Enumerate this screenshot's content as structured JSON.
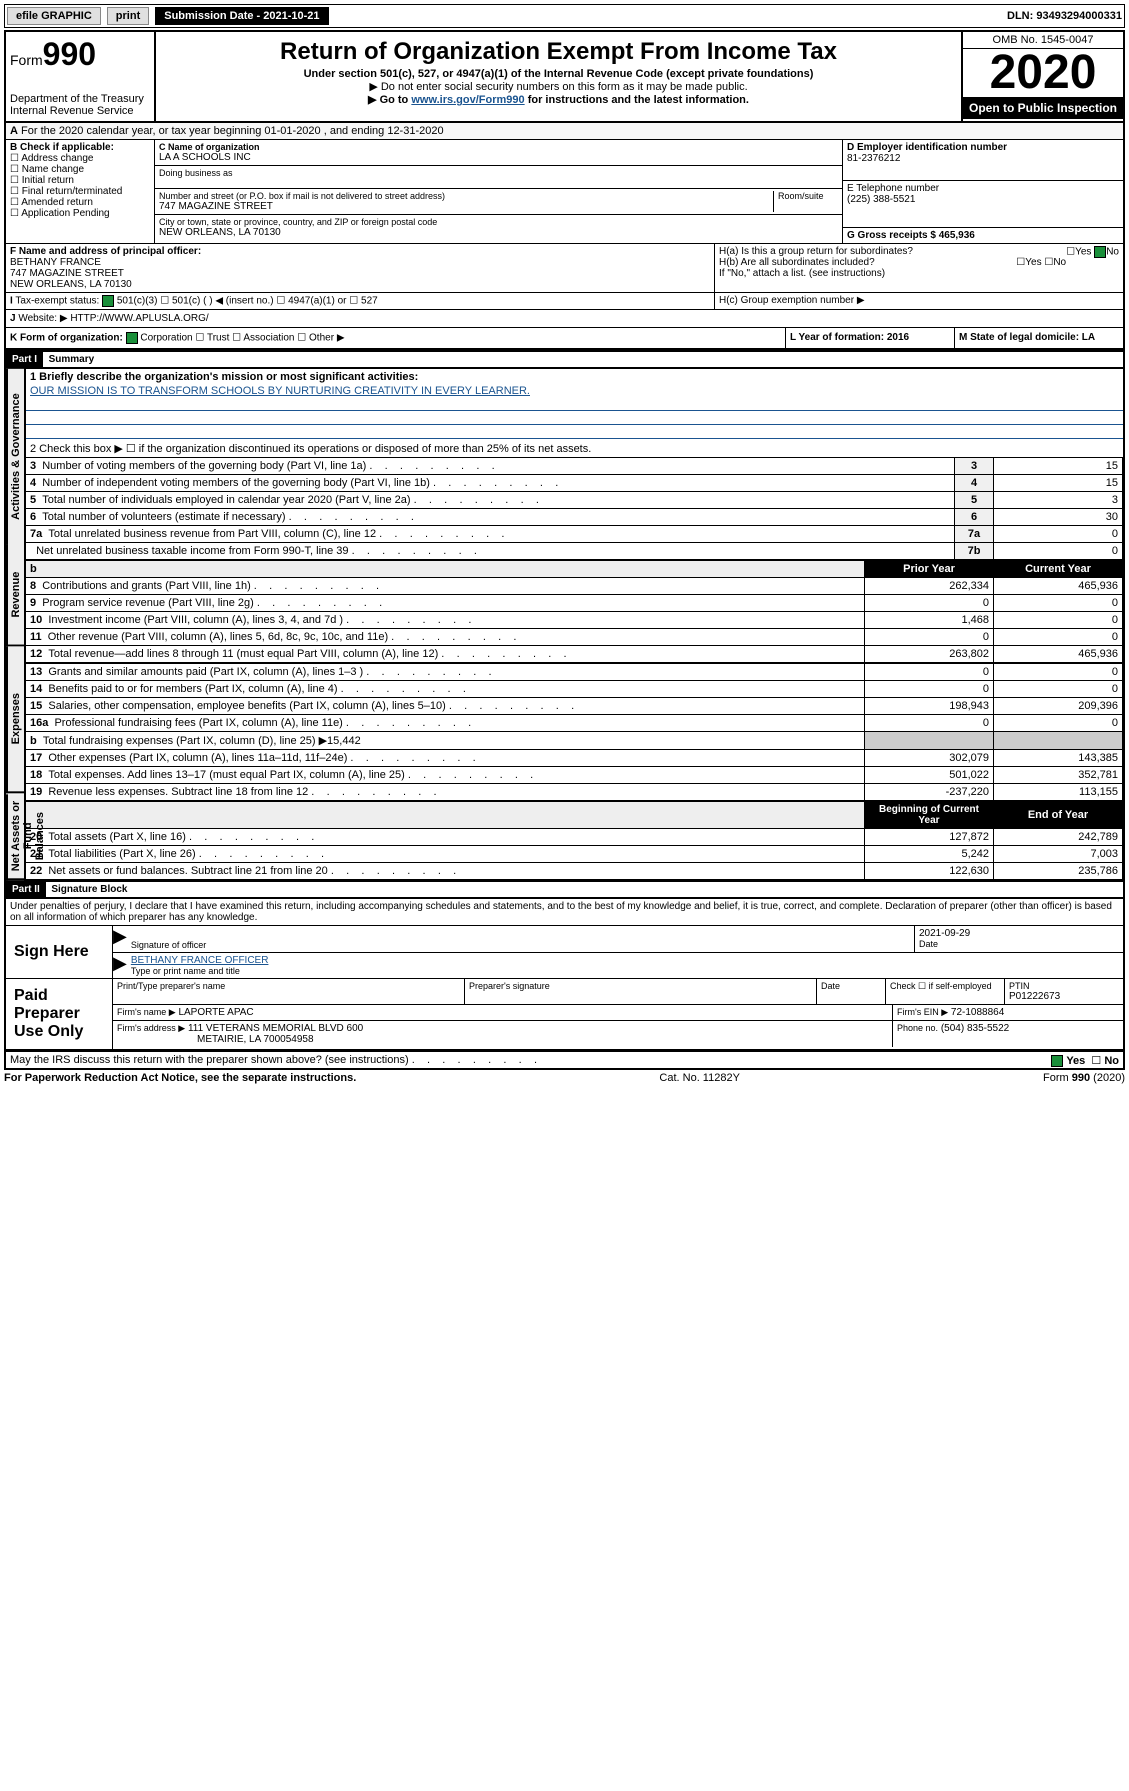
{
  "topbar": {
    "efile": "efile GRAPHIC",
    "print": "print",
    "subdate_label": "Submission Date - 2021-10-21",
    "dln": "DLN: 93493294000331"
  },
  "header": {
    "form_prefix": "Form",
    "form_num": "990",
    "dept": "Department of the Treasury",
    "irs": "Internal Revenue Service",
    "title": "Return of Organization Exempt From Income Tax",
    "subtitle": "Under section 501(c), 527, or 4947(a)(1) of the Internal Revenue Code (except private foundations)",
    "note1": "▶ Do not enter social security numbers on this form as it may be made public.",
    "note2_pre": "▶ Go to ",
    "note2_link": "www.irs.gov/Form990",
    "note2_post": " for instructions and the latest information.",
    "omb": "OMB No. 1545-0047",
    "year": "2020",
    "open": "Open to Public Inspection"
  },
  "lineA": "For the 2020 calendar year, or tax year beginning 01-01-2020   , and ending 12-31-2020",
  "boxB": {
    "label": "B Check if applicable:",
    "items": [
      "Address change",
      "Name change",
      "Initial return",
      "Final return/terminated",
      "Amended return",
      "Application Pending"
    ]
  },
  "boxC": {
    "name_label": "C Name of organization",
    "name": "LA A SCHOOLS INC",
    "dba_label": "Doing business as",
    "addr_label": "Number and street (or P.O. box if mail is not delivered to street address)",
    "room_label": "Room/suite",
    "addr": "747 MAGAZINE STREET",
    "city_label": "City or town, state or province, country, and ZIP or foreign postal code",
    "city": "NEW ORLEANS, LA  70130"
  },
  "boxD": {
    "label": "D Employer identification number",
    "value": "81-2376212"
  },
  "boxE": {
    "label": "E Telephone number",
    "value": "(225) 388-5521"
  },
  "boxG": {
    "label": "G Gross receipts $ 465,936"
  },
  "boxF": {
    "label": "F  Name and address of principal officer:",
    "name": "BETHANY FRANCE",
    "addr1": "747 MAGAZINE STREET",
    "addr2": "NEW ORLEANS, LA  70130"
  },
  "boxH": {
    "a": "H(a)  Is this a group return for subordinates?",
    "b": "H(b)  Are all subordinates included?",
    "b_note": "If \"No,\" attach a list. (see instructions)",
    "c": "H(c)  Group exemption number ▶",
    "yes": "Yes",
    "no": "No"
  },
  "boxI": {
    "label": "Tax-exempt status:",
    "opts": [
      "501(c)(3)",
      "501(c) (   ) ◀ (insert no.)",
      "4947(a)(1) or",
      "527"
    ]
  },
  "boxJ": {
    "label": "Website: ▶",
    "value": "HTTP://WWW.APLUSLA.ORG/"
  },
  "boxK": {
    "label": "K Form of organization:",
    "opts": [
      "Corporation",
      "Trust",
      "Association",
      "Other ▶"
    ]
  },
  "boxL": {
    "label": "L Year of formation: 2016"
  },
  "boxM": {
    "label": "M State of legal domicile: LA"
  },
  "part1": {
    "hdr": "Part I",
    "title": "Summary",
    "l1_label": "1  Briefly describe the organization's mission or most significant activities:",
    "l1_text": "OUR MISSION IS TO TRANSFORM SCHOOLS BY NURTURING CREATIVITY IN EVERY LEARNER.",
    "l2": "2   Check this box ▶ ☐  if the organization discontinued its operations or disposed of more than 25% of its net assets.",
    "rows_top": [
      {
        "n": "3",
        "t": "Number of voting members of the governing body (Part VI, line 1a)",
        "b": "3",
        "v": "15"
      },
      {
        "n": "4",
        "t": "Number of independent voting members of the governing body (Part VI, line 1b)",
        "b": "4",
        "v": "15"
      },
      {
        "n": "5",
        "t": "Total number of individuals employed in calendar year 2020 (Part V, line 2a)",
        "b": "5",
        "v": "3"
      },
      {
        "n": "6",
        "t": "Total number of volunteers (estimate if necessary)",
        "b": "6",
        "v": "30"
      },
      {
        "n": "7a",
        "t": "Total unrelated business revenue from Part VIII, column (C), line 12",
        "b": "7a",
        "v": "0"
      },
      {
        "n": "",
        "t": "Net unrelated business taxable income from Form 990-T, line 39",
        "b": "7b",
        "v": "0"
      }
    ],
    "col_prior": "Prior Year",
    "col_current": "Current Year",
    "revenue": [
      {
        "n": "8",
        "t": "Contributions and grants (Part VIII, line 1h)",
        "p": "262,334",
        "c": "465,936"
      },
      {
        "n": "9",
        "t": "Program service revenue (Part VIII, line 2g)",
        "p": "0",
        "c": "0"
      },
      {
        "n": "10",
        "t": "Investment income (Part VIII, column (A), lines 3, 4, and 7d )",
        "p": "1,468",
        "c": "0"
      },
      {
        "n": "11",
        "t": "Other revenue (Part VIII, column (A), lines 5, 6d, 8c, 9c, 10c, and 11e)",
        "p": "0",
        "c": "0"
      },
      {
        "n": "12",
        "t": "Total revenue—add lines 8 through 11 (must equal Part VIII, column (A), line 12)",
        "p": "263,802",
        "c": "465,936"
      }
    ],
    "expenses": [
      {
        "n": "13",
        "t": "Grants and similar amounts paid (Part IX, column (A), lines 1–3 )",
        "p": "0",
        "c": "0"
      },
      {
        "n": "14",
        "t": "Benefits paid to or for members (Part IX, column (A), line 4)",
        "p": "0",
        "c": "0"
      },
      {
        "n": "15",
        "t": "Salaries, other compensation, employee benefits (Part IX, column (A), lines 5–10)",
        "p": "198,943",
        "c": "209,396"
      },
      {
        "n": "16a",
        "t": "Professional fundraising fees (Part IX, column (A), line 11e)",
        "p": "0",
        "c": "0"
      },
      {
        "n": "b",
        "t": "Total fundraising expenses (Part IX, column (D), line 25) ▶15,442",
        "p": "",
        "c": ""
      },
      {
        "n": "17",
        "t": "Other expenses (Part IX, column (A), lines 11a–11d, 11f–24e)",
        "p": "302,079",
        "c": "143,385"
      },
      {
        "n": "18",
        "t": "Total expenses. Add lines 13–17 (must equal Part IX, column (A), line 25)",
        "p": "501,022",
        "c": "352,781"
      },
      {
        "n": "19",
        "t": "Revenue less expenses. Subtract line 18 from line 12",
        "p": "-237,220",
        "c": "113,155"
      }
    ],
    "col_boy": "Beginning of Current Year",
    "col_eoy": "End of Year",
    "netassets": [
      {
        "n": "20",
        "t": "Total assets (Part X, line 16)",
        "p": "127,872",
        "c": "242,789"
      },
      {
        "n": "21",
        "t": "Total liabilities (Part X, line 26)",
        "p": "5,242",
        "c": "7,003"
      },
      {
        "n": "22",
        "t": "Net assets or fund balances. Subtract line 21 from line 20",
        "p": "122,630",
        "c": "235,786"
      }
    ],
    "section_labels": {
      "gov": "Activities & Governance",
      "rev": "Revenue",
      "exp": "Expenses",
      "net": "Net Assets or Fund Balances"
    }
  },
  "part2": {
    "hdr": "Part II",
    "title": "Signature Block",
    "perjury": "Under penalties of perjury, I declare that I have examined this return, including accompanying schedules and statements, and to the best of my knowledge and belief, it is true, correct, and complete. Declaration of preparer (other than officer) is based on all information of which preparer has any knowledge.",
    "sign_here": "Sign Here",
    "sig_officer": "Signature of officer",
    "sig_date": "2021-09-29",
    "date_label": "Date",
    "officer_name": "BETHANY FRANCE  OFFICER",
    "officer_label": "Type or print name and title",
    "paid": "Paid Preparer Use Only",
    "prep_name_label": "Print/Type preparer's name",
    "prep_sig_label": "Preparer's signature",
    "check_self": "Check ☐ if self-employed",
    "ptin_label": "PTIN",
    "ptin": "P01222673",
    "firm_name_label": "Firm's name   ▶",
    "firm_name": "LAPORTE APAC",
    "firm_ein_label": "Firm's EIN ▶",
    "firm_ein": "72-1088864",
    "firm_addr_label": "Firm's address ▶",
    "firm_addr1": "111 VETERANS MEMORIAL BLVD 600",
    "firm_addr2": "METAIRIE, LA  700054958",
    "phone_label": "Phone no.",
    "phone": "(504) 835-5522",
    "discuss": "May the IRS discuss this return with the preparer shown above? (see instructions)",
    "yes": "Yes",
    "no": "No"
  },
  "footer": {
    "pra": "For Paperwork Reduction Act Notice, see the separate instructions.",
    "cat": "Cat. No. 11282Y",
    "form": "Form 990 (2020)"
  }
}
